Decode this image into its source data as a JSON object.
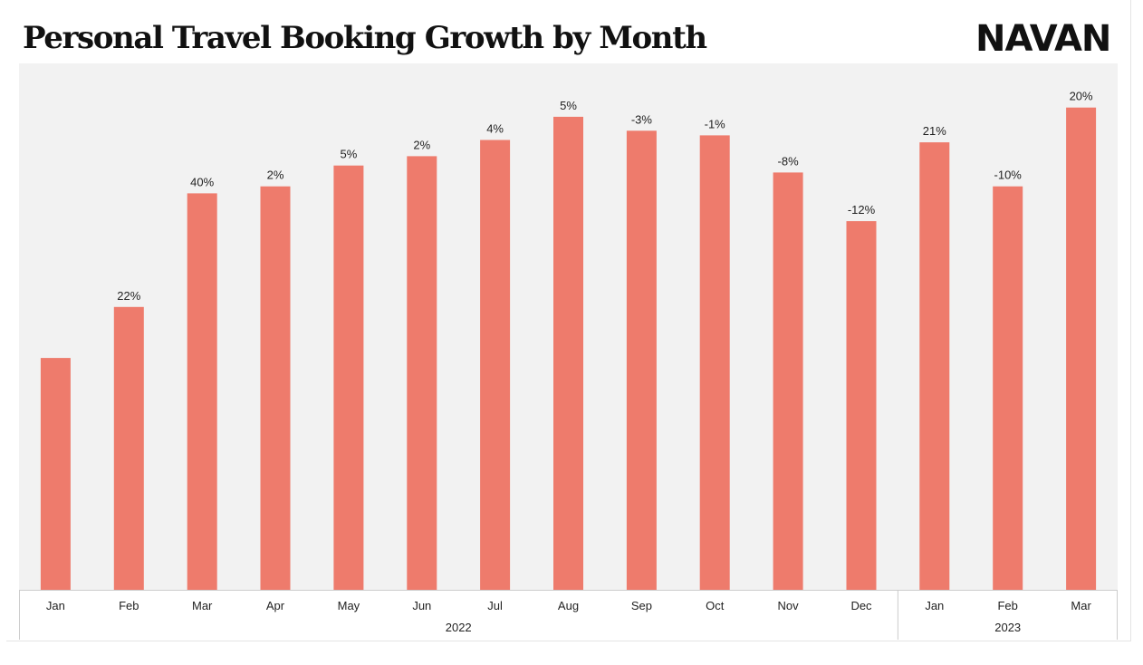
{
  "title": "Personal Travel Booking Growth by Month",
  "brand": {
    "name": "NAVAN"
  },
  "chart_data": {
    "type": "bar",
    "title": "Personal Travel Booking Growth by Month",
    "categories": [
      "Jan",
      "Feb",
      "Mar",
      "Apr",
      "May",
      "Jun",
      "Jul",
      "Aug",
      "Sep",
      "Oct",
      "Nov",
      "Dec",
      "Jan",
      "Feb",
      "Mar"
    ],
    "groups": [
      {
        "label": "2022",
        "count": 12
      },
      {
        "label": "2023",
        "count": 3
      }
    ],
    "values": [
      100,
      122,
      171,
      174,
      183,
      187,
      194,
      204,
      198,
      196,
      180,
      159,
      193,
      174,
      208
    ],
    "data_labels": [
      "",
      "22%",
      "40%",
      "2%",
      "5%",
      "2%",
      "4%",
      "5%",
      "-3%",
      "-1%",
      "-8%",
      "-12%",
      "21%",
      "-10%",
      "20%"
    ],
    "ylim": [
      0,
      220
    ],
    "grid": false,
    "legend": "none",
    "colors": {
      "bar": "#ee7b6c",
      "plot_background": "#f2f2f2",
      "axis_line": "#cccccc",
      "text": "#222222"
    }
  }
}
